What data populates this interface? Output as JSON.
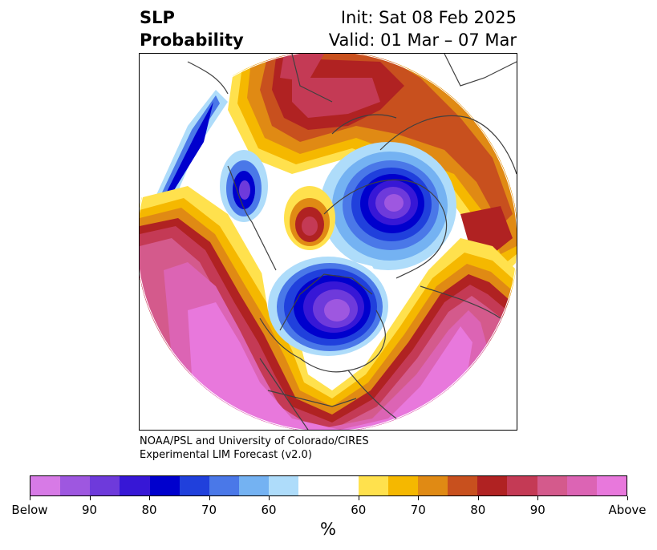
{
  "title": {
    "left_line1": "SLP",
    "left_line2": "Probability",
    "right_line1": "Init: Sat 08 Feb 2025",
    "right_line2": "Valid: 01 Mar – 07 Mar"
  },
  "credit": {
    "line1": "NOAA/PSL and University of Colorado/CIRES",
    "line2": "Experimental LIM Forecast (v2.0)"
  },
  "colorbar": {
    "unit": "%",
    "colors": [
      "#d77ae6",
      "#9e57e0",
      "#6e3adb",
      "#3717d6",
      "#0000cd",
      "#2040dc",
      "#4a78e8",
      "#74b2f2",
      "#aedcfa",
      "#ffffff",
      "#ffe14d",
      "#f5b800",
      "#e08a14",
      "#c8501e",
      "#b02222",
      "#c43a55",
      "#d45a8c",
      "#dc64b4",
      "#e878dc"
    ],
    "tick_labels": [
      "Below",
      "90",
      "80",
      "70",
      "60",
      "60",
      "70",
      "80",
      "90",
      "Above"
    ]
  },
  "map": {
    "projection": "north-polar-stereographic",
    "regions": [
      {
        "name": "north-pacific-above",
        "category": "Above 90"
      },
      {
        "name": "north-america-below",
        "category": "Below 90"
      },
      {
        "name": "siberia-below",
        "category": "Below 80"
      },
      {
        "name": "eurasia-above",
        "category": "Above 80"
      }
    ]
  }
}
